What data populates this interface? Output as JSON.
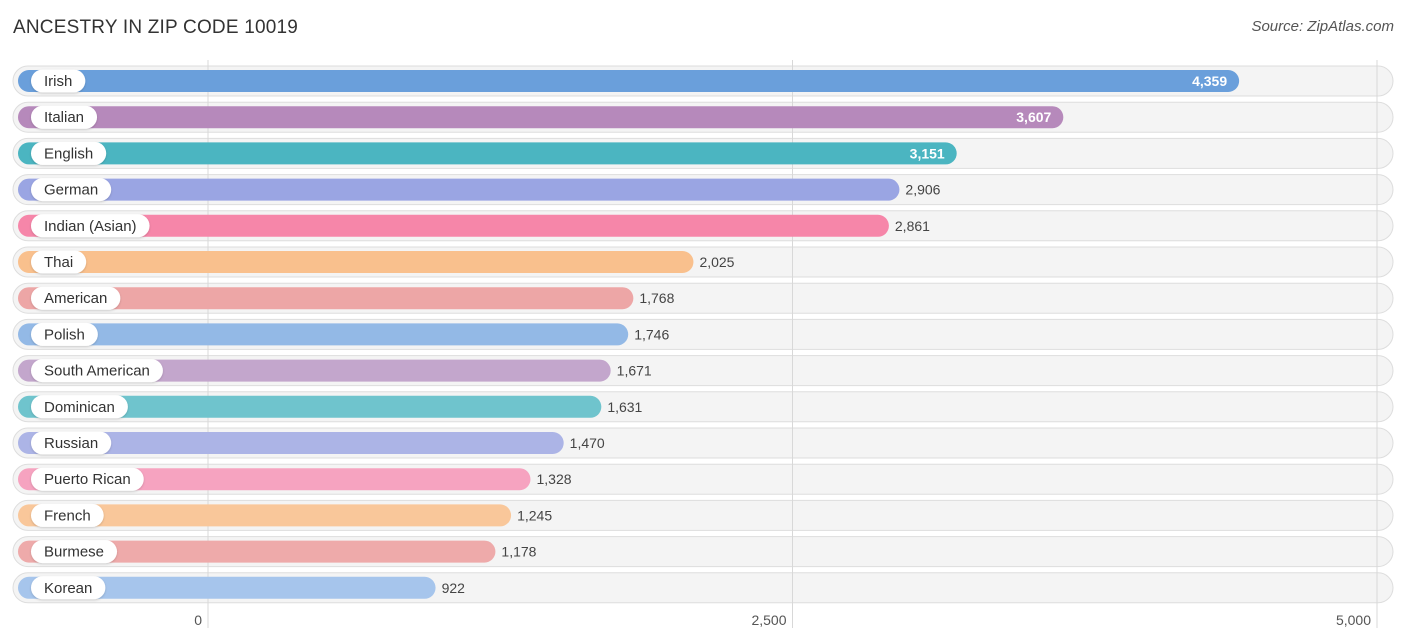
{
  "header": {
    "title": "ANCESTRY IN ZIP CODE 10019",
    "source": "Source: ZipAtlas.com"
  },
  "chart_data": {
    "type": "bar",
    "orientation": "horizontal",
    "title": "ANCESTRY IN ZIP CODE 10019",
    "xlabel": "",
    "ylabel": "",
    "xlim": [
      0,
      5000
    ],
    "ticks": [
      0,
      2500,
      5000
    ],
    "tick_labels": [
      "0",
      "2,500",
      "5,000"
    ],
    "grid": true,
    "categories": [
      "Irish",
      "Italian",
      "English",
      "German",
      "Indian (Asian)",
      "Thai",
      "American",
      "Polish",
      "South American",
      "Dominican",
      "Russian",
      "Puerto Rican",
      "French",
      "Burmese",
      "Korean"
    ],
    "values": [
      4359,
      3607,
      3151,
      2906,
      2861,
      2025,
      1768,
      1746,
      1671,
      1631,
      1470,
      1328,
      1245,
      1178,
      922
    ],
    "value_labels": [
      "4,359",
      "3,607",
      "3,151",
      "2,906",
      "2,861",
      "2,025",
      "1,768",
      "1,746",
      "1,671",
      "1,631",
      "1,470",
      "1,328",
      "1,245",
      "1,178",
      "922"
    ],
    "colors": [
      "#6a9fdb",
      "#b689bb",
      "#4bb5c1",
      "#9aa5e3",
      "#f686a9",
      "#f9c08d",
      "#eda6a6",
      "#93b9e6",
      "#c3a6cc",
      "#6fc4cd",
      "#acb4e6",
      "#f6a3c0",
      "#f9c79a",
      "#eeaaaa",
      "#a6c5ec"
    ],
    "labels_inside_bar": [
      true,
      true,
      true,
      false,
      false,
      false,
      false,
      false,
      false,
      false,
      false,
      false,
      false,
      false,
      false
    ]
  }
}
